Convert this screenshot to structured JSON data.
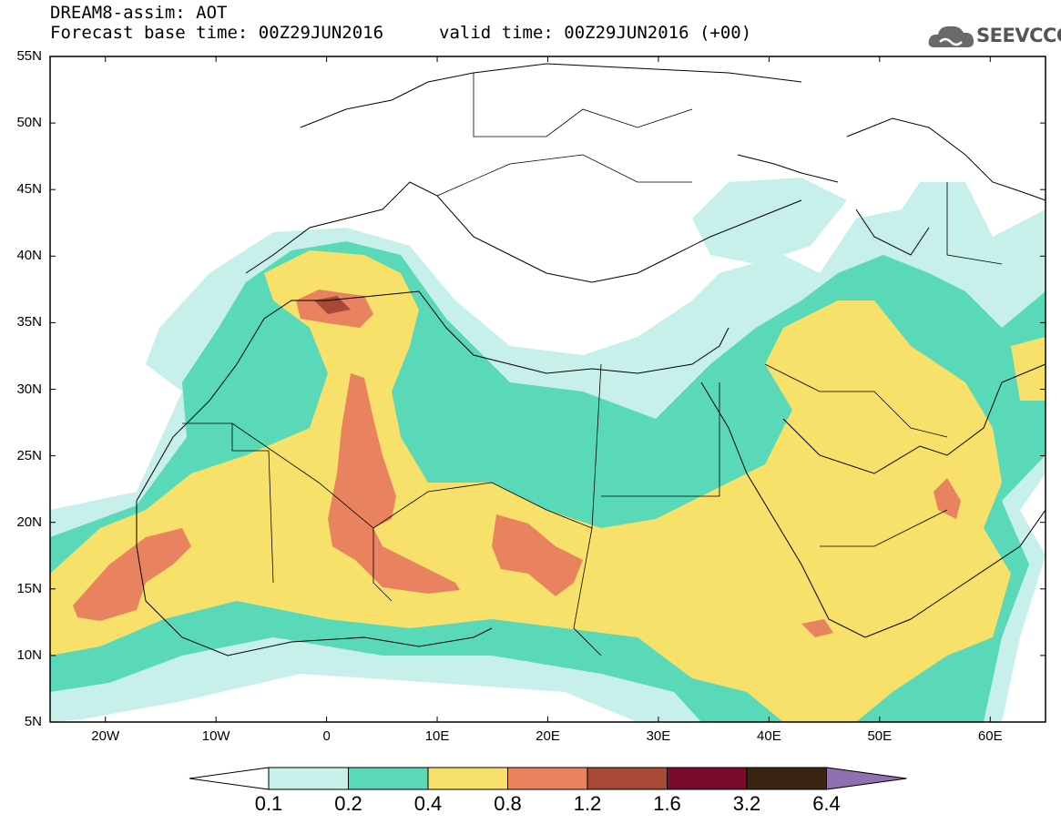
{
  "header": {
    "line1": "DREAM8-assim: AOT",
    "line2": "Forecast base time: 00Z29JUN2016",
    "line3": "valid time: 00Z29JUN2016 (+00)"
  },
  "logo": {
    "text": "SEEVCCC",
    "icon": "cloud-icon"
  },
  "axes": {
    "lat_labels": [
      "55N",
      "50N",
      "45N",
      "40N",
      "35N",
      "30N",
      "25N",
      "20N",
      "15N",
      "10N",
      "5N"
    ],
    "lon_labels": [
      "20W",
      "10W",
      "0",
      "10E",
      "20E",
      "30E",
      "40E",
      "50E",
      "60E"
    ],
    "lon_range": [
      -25,
      65
    ],
    "lat_range": [
      5,
      55
    ]
  },
  "colorbar": {
    "levels": [
      "0.1",
      "0.2",
      "0.4",
      "0.8",
      "1.2",
      "1.6",
      "3.2",
      "6.4"
    ],
    "colors": [
      "#ffffff",
      "#c8f0ea",
      "#5ad9b8",
      "#f7e16a",
      "#e8825f",
      "#a84836",
      "#7a0a2a",
      "#3a2412",
      "#9070b0"
    ]
  }
}
